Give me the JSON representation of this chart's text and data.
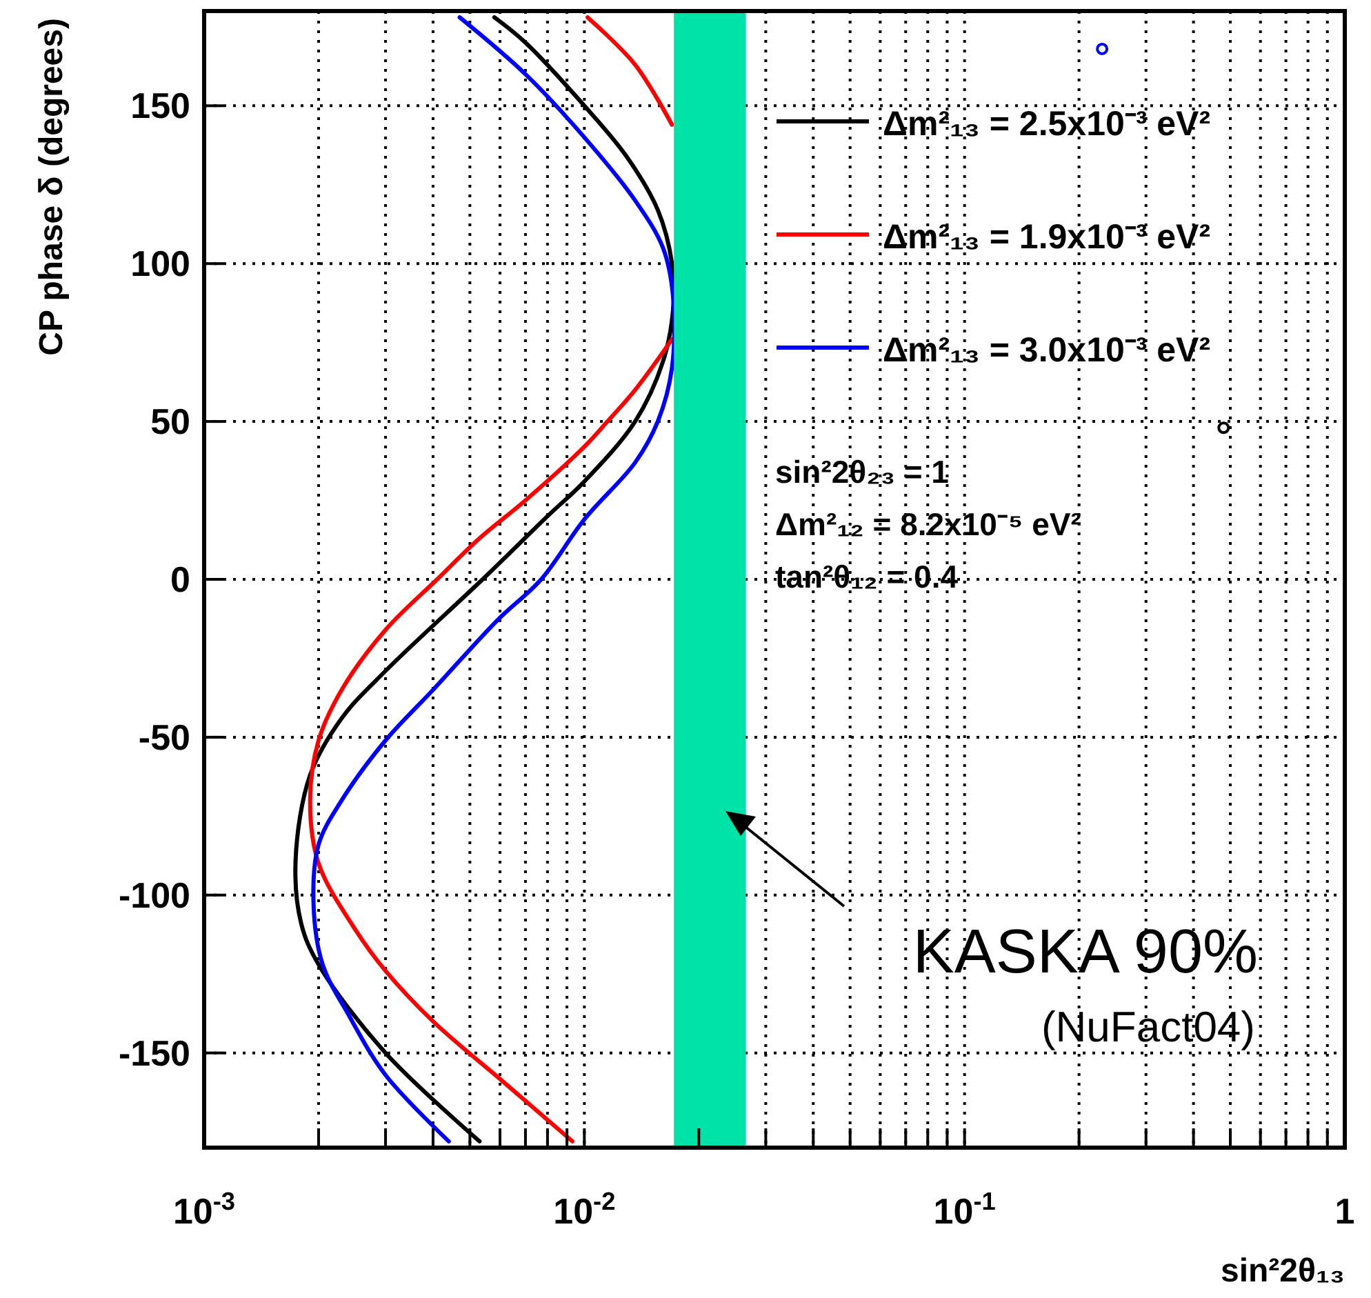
{
  "chart_data": {
    "type": "line",
    "xlabel": "sin²2θ₁₃",
    "ylabel": "CP phase δ (degrees)",
    "log": "x",
    "xlim": [
      0.001,
      1
    ],
    "ylim": [
      -180,
      180
    ],
    "xticks": [
      {
        "value": 0.001,
        "label": "10$^{-3}$"
      },
      {
        "value": 0.002,
        "label": null
      },
      {
        "value": 0.003,
        "label": null
      },
      {
        "value": 0.004,
        "label": null
      },
      {
        "value": 0.005,
        "label": null
      },
      {
        "value": 0.006,
        "label": null
      },
      {
        "value": 0.007,
        "label": null
      },
      {
        "value": 0.008,
        "label": null
      },
      {
        "value": 0.009,
        "label": null
      },
      {
        "value": 0.01,
        "label": "10$^{-2}$"
      },
      {
        "value": 0.02,
        "label": null
      },
      {
        "value": 0.03,
        "label": null
      },
      {
        "value": 0.04,
        "label": null
      },
      {
        "value": 0.05,
        "label": null
      },
      {
        "value": 0.06,
        "label": null
      },
      {
        "value": 0.07,
        "label": null
      },
      {
        "value": 0.08,
        "label": null
      },
      {
        "value": 0.09,
        "label": null
      },
      {
        "value": 0.1,
        "label": "10$^{-1}$"
      },
      {
        "value": 0.2,
        "label": null
      },
      {
        "value": 0.3,
        "label": null
      },
      {
        "value": 0.4,
        "label": null
      },
      {
        "value": 0.5,
        "label": null
      },
      {
        "value": 0.6,
        "label": null
      },
      {
        "value": 0.7,
        "label": null
      },
      {
        "value": 0.8,
        "label": null
      },
      {
        "value": 0.9,
        "label": null
      },
      1
    ],
    "yticks": [
      -150,
      -100,
      -50,
      0,
      50,
      100,
      150
    ],
    "grid": true,
    "legend": "top right",
    "line_style": "solid",
    "series": [
      {
        "name": "Δm²₁₃ = 2.5x10⁻³ eV²",
        "color": "#000000",
        "x": [
          0.0058,
          0.007,
          0.01,
          0.0129,
          0.0156,
          0.017,
          0.0171,
          0.0161,
          0.0136,
          0.01,
          0.008,
          0.0054,
          0.003,
          0.0023,
          0.0019,
          0.00174,
          0.0018,
          0.002,
          0.003,
          0.0053
        ],
        "values": [
          178,
          170,
          150,
          134,
          117,
          100,
          85,
          69,
          50,
          31,
          20,
          0,
          -29,
          -44,
          -62,
          -89,
          -109,
          -122,
          -150,
          -178
        ]
      },
      {
        "name": "Δm²₁₃ = 1.9x10⁻³ eV²",
        "color": "#ff0000",
        "x": [
          0.0102,
          0.0136,
          0.017,
          null,
          0.017,
          0.0136,
          0.0115,
          0.01,
          0.007,
          0.0053,
          0.0041,
          0.003,
          0.0023,
          0.002,
          0.0019,
          0.002,
          0.0025,
          0.003,
          0.004,
          0.0061,
          0.0093
        ],
        "values": [
          178,
          163,
          144,
          null,
          76,
          60,
          50,
          42,
          25,
          13,
          0,
          -16,
          -35,
          -51,
          -70,
          -90,
          -111,
          -124,
          -140,
          -159,
          -178
        ]
      },
      {
        "name": "Δm²₁₃ = 3.0x10⁻³ eV²",
        "color": "#0000ff",
        "x": [
          0.0047,
          0.007,
          0.01,
          0.0136,
          0.0161,
          0.0171,
          0.017,
          0.0156,
          0.0136,
          0.01,
          0.0077,
          0.0059,
          0.004,
          0.003,
          0.0023,
          0.002,
          0.00194,
          0.00205,
          0.0024,
          0.003,
          0.0044
        ],
        "values": [
          178,
          160,
          140,
          120,
          105,
          90,
          67,
          50,
          37,
          19,
          0,
          -13,
          -35,
          -51,
          -70,
          -84,
          -103,
          -122,
          -138,
          -157,
          -178
        ]
      },
      {
        "type": "scatter",
        "marker": "circle",
        "color": "#0000ff",
        "x": [
          0.23
        ],
        "values": [
          168
        ]
      },
      {
        "type": "scatter",
        "marker": "circle",
        "color": "#000000",
        "x": [
          0.48
        ],
        "values": [
          48
        ]
      }
    ],
    "bands": [
      {
        "axis": "x",
        "from": 0.0172,
        "to": 0.0266,
        "label": "KASKA 90%",
        "color": "#00e3a8"
      }
    ],
    "annotations": [
      "sin²2θ₂₃ = 1",
      "Δm²₁₂ = 8.2x10⁻⁵ eV²",
      "tan²θ₁₂ = 0.4",
      "(NuFact04)"
    ]
  }
}
